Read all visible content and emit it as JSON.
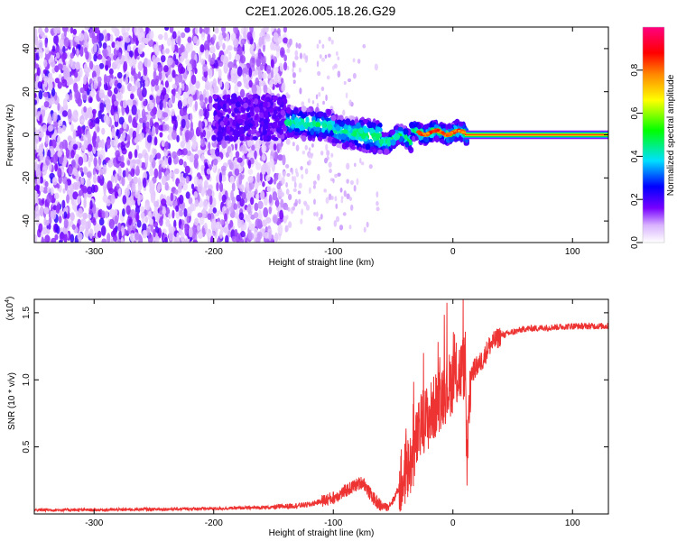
{
  "title": "C2E1.2026.005.18.26.G29",
  "chart_data": [
    {
      "type": "heatmap",
      "xlabel": "Height of straight line (km)",
      "ylabel": "Frequency (Hz)",
      "xlim": [
        -350,
        130
      ],
      "ylim": [
        -50,
        50
      ],
      "xticks": [
        -300,
        -200,
        -100,
        0,
        100
      ],
      "yticks": [
        -40,
        -20,
        0,
        20,
        40
      ],
      "colorbar": {
        "label": "Normalized spectral amplitude",
        "range": [
          0,
          1
        ],
        "ticks": [
          "0.0",
          "0.2",
          "0.4",
          "0.6",
          "0.8"
        ],
        "colors": [
          "#ffffff",
          "#7700ff",
          "#0000ff",
          "#00e0ff",
          "#00ff00",
          "#ffff00",
          "#ff8800",
          "#ff0000",
          "#ff0080"
        ]
      },
      "features": [
        {
          "name": "noise_region",
          "x_range": [
            -350,
            -140
          ],
          "freq_range": [
            -50,
            50
          ],
          "amplitude": 0.15
        },
        {
          "name": "signal_track",
          "x_range": [
            -140,
            130
          ],
          "freq_center": 0,
          "amplitude": 0.9
        }
      ]
    },
    {
      "type": "line",
      "xlabel": "Height of straight line (km)",
      "ylabel": "SNR (10 * v/v)",
      "yscale_label": "(x10",
      "yscale_exp": "4",
      "xlim": [
        -350,
        130
      ],
      "ylim": [
        0,
        1.6
      ],
      "xticks": [
        -300,
        -200,
        -100,
        0,
        100
      ],
      "yticks": [
        "0.5",
        "1.0",
        "1.5"
      ],
      "color": "#ee3333",
      "series": [
        {
          "x": [
            -350,
            -300,
            -250,
            -200,
            -150,
            -120,
            -100,
            -90,
            -80,
            -75,
            -70,
            -65,
            -60,
            -55,
            -50,
            -45,
            -40,
            -35,
            -30,
            -25,
            -20,
            -15,
            -10,
            -5,
            0,
            5,
            10,
            12,
            15,
            20,
            25,
            30,
            40,
            60,
            80,
            100,
            130
          ],
          "y": [
            0.03,
            0.03,
            0.035,
            0.04,
            0.05,
            0.07,
            0.12,
            0.17,
            0.22,
            0.24,
            0.16,
            0.1,
            0.06,
            0.05,
            0.1,
            0.2,
            0.3,
            0.38,
            0.55,
            0.7,
            0.72,
            0.8,
            0.88,
            0.93,
            1.0,
            1.05,
            1.1,
            0.3,
            1.05,
            1.1,
            1.15,
            1.25,
            1.33,
            1.38,
            1.39,
            1.4,
            1.4
          ]
        }
      ]
    }
  ]
}
